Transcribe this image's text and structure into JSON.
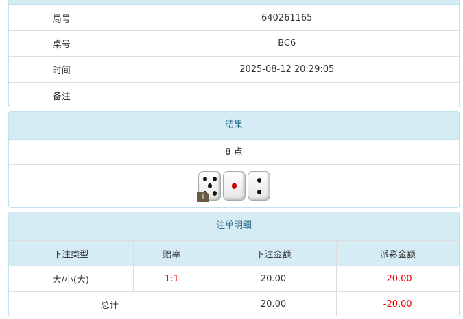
{
  "info": {
    "rows": [
      {
        "label": "局号",
        "value": "640261165"
      },
      {
        "label": "桌号",
        "value": "BC6"
      },
      {
        "label": "时间",
        "value": "2025-08-12 20:29:05"
      },
      {
        "label": "备注",
        "value": ""
      }
    ]
  },
  "result": {
    "title": "结果",
    "points": "8 点",
    "dice": [
      5,
      1,
      2
    ],
    "badge": "i"
  },
  "bets": {
    "title": "注单明细",
    "headers": [
      "下注类型",
      "赔率",
      "下注金额",
      "派彩金额"
    ],
    "rows": [
      {
        "type": "大/小(大)",
        "odds": "1:1",
        "amount": "20.00",
        "payout": "-20.00"
      }
    ],
    "total": {
      "label": "总计",
      "amount": "20.00",
      "payout": "-20.00"
    }
  },
  "colors": {
    "header_bg": "#d6ecf5",
    "negative": "#e00000"
  }
}
